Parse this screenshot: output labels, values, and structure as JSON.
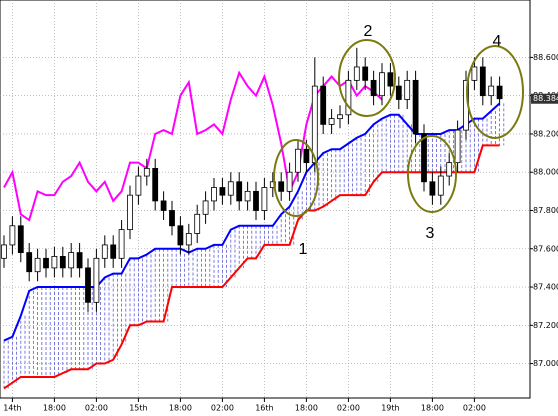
{
  "chart_data": {
    "type": "candlestick",
    "categories": [
      null,
      "14th",
      null,
      null,
      null,
      null,
      "18:00",
      null,
      null,
      null,
      null,
      "02:00",
      null,
      null,
      null,
      null,
      "15th",
      null,
      null,
      null,
      null,
      "18:00",
      null,
      null,
      null,
      null,
      "02:00",
      null,
      null,
      null,
      null,
      "16th",
      null,
      null,
      null,
      null,
      "18:00",
      null,
      null,
      null,
      null,
      "02:00",
      null,
      null,
      null,
      null,
      "19th",
      null,
      null,
      null,
      null,
      "18:00",
      null,
      null,
      null,
      null,
      "02:00",
      null,
      null,
      null
    ],
    "open": [
      87.55,
      87.62,
      87.72,
      87.58,
      87.48,
      87.55,
      87.5,
      87.56,
      87.5,
      87.58,
      87.5,
      87.32,
      87.55,
      87.62,
      87.55,
      87.7,
      87.88,
      87.98,
      88.02,
      87.85,
      87.8,
      87.72,
      87.62,
      87.68,
      87.78,
      87.85,
      87.92,
      87.88,
      87.95,
      87.85,
      87.9,
      87.8,
      87.92,
      87.95,
      87.9,
      88.0,
      88.12,
      88.05,
      88.45,
      88.25,
      88.28,
      88.3,
      88.48,
      88.55,
      88.48,
      88.4,
      88.52,
      88.45,
      88.38,
      88.48,
      88.2,
      87.95,
      87.88,
      87.98,
      88.05,
      88.22,
      88.48,
      88.55,
      88.4,
      88.45
    ],
    "high": [
      87.67,
      87.77,
      87.77,
      87.63,
      87.6,
      87.6,
      87.61,
      87.61,
      87.63,
      87.63,
      87.55,
      87.6,
      87.67,
      87.67,
      87.75,
      87.93,
      88.03,
      88.07,
      88.07,
      87.9,
      87.85,
      87.77,
      87.73,
      87.83,
      87.9,
      87.97,
      87.97,
      88.0,
      88.0,
      87.95,
      87.95,
      87.97,
      88.0,
      88.0,
      88.05,
      88.17,
      88.17,
      88.6,
      88.5,
      88.33,
      88.35,
      88.53,
      88.65,
      88.6,
      88.53,
      88.57,
      88.57,
      88.5,
      88.53,
      88.53,
      88.25,
      88.0,
      88.03,
      88.1,
      88.27,
      88.53,
      88.6,
      88.6,
      88.5,
      88.5
    ],
    "low": [
      87.5,
      87.57,
      87.53,
      87.43,
      87.43,
      87.45,
      87.45,
      87.45,
      87.45,
      87.45,
      87.27,
      87.27,
      87.5,
      87.5,
      87.5,
      87.65,
      87.83,
      87.93,
      87.8,
      87.75,
      87.67,
      87.57,
      87.57,
      87.63,
      87.73,
      87.8,
      87.83,
      87.83,
      87.8,
      87.8,
      87.75,
      87.75,
      87.87,
      87.85,
      87.85,
      87.95,
      88.0,
      88.0,
      88.2,
      88.2,
      88.23,
      88.25,
      88.43,
      88.43,
      88.35,
      88.35,
      88.4,
      88.33,
      88.33,
      88.15,
      87.9,
      87.83,
      87.83,
      87.93,
      88.0,
      88.17,
      88.43,
      88.35,
      88.35,
      88.35
    ],
    "close": [
      87.62,
      87.72,
      87.58,
      87.48,
      87.55,
      87.5,
      87.56,
      87.5,
      87.58,
      87.5,
      87.32,
      87.55,
      87.62,
      87.55,
      87.7,
      87.88,
      87.98,
      88.02,
      87.85,
      87.8,
      87.72,
      87.62,
      87.68,
      87.78,
      87.85,
      87.92,
      87.88,
      87.95,
      87.85,
      87.9,
      87.8,
      87.92,
      87.95,
      87.9,
      88.0,
      88.12,
      88.05,
      88.45,
      88.25,
      88.28,
      88.3,
      88.48,
      88.55,
      88.48,
      88.4,
      88.52,
      88.45,
      88.38,
      88.48,
      88.2,
      87.95,
      87.88,
      87.98,
      88.05,
      88.22,
      88.48,
      88.55,
      88.4,
      88.45,
      88.384
    ],
    "series": [
      {
        "color": "#0000ff",
        "values": [
          87.12,
          87.14,
          87.25,
          87.38,
          87.4,
          87.4,
          87.4,
          87.4,
          87.4,
          87.4,
          87.4,
          87.4,
          87.45,
          87.47,
          87.47,
          87.55,
          87.55,
          87.57,
          87.6,
          87.6,
          87.6,
          87.6,
          87.58,
          87.6,
          87.6,
          87.62,
          87.62,
          87.7,
          87.72,
          87.72,
          87.72,
          87.72,
          87.72,
          87.78,
          87.82,
          87.9,
          88.0,
          88.05,
          88.1,
          88.12,
          88.12,
          88.15,
          88.18,
          88.2,
          88.25,
          88.28,
          88.3,
          88.3,
          88.25,
          88.2,
          88.2,
          88.2,
          88.2,
          88.22,
          88.22,
          88.25,
          88.28,
          88.28,
          88.32,
          88.36
        ]
      },
      {
        "color": "#ff0000",
        "values": [
          86.87,
          86.9,
          86.93,
          86.93,
          86.93,
          86.93,
          86.93,
          86.95,
          86.97,
          86.97,
          86.97,
          87.0,
          87.0,
          87.02,
          87.1,
          87.2,
          87.2,
          87.22,
          87.22,
          87.22,
          87.4,
          87.4,
          87.4,
          87.4,
          87.4,
          87.4,
          87.4,
          87.45,
          87.5,
          87.55,
          87.55,
          87.62,
          87.62,
          87.62,
          87.62,
          87.75,
          87.8,
          87.8,
          87.82,
          87.85,
          87.88,
          87.88,
          87.88,
          87.88,
          87.95,
          88.0,
          88.0,
          88.0,
          88.0,
          88.0,
          88.0,
          88.0,
          88.0,
          88.0,
          88.0,
          88.0,
          88.0,
          88.14,
          88.14,
          88.14
        ]
      },
      {
        "color": "#ff00ff",
        "values": [
          87.92,
          88.0,
          87.78,
          87.75,
          87.9,
          87.88,
          87.88,
          87.95,
          87.98,
          88.05,
          87.95,
          87.9,
          87.95,
          87.85,
          87.9,
          88.05,
          88.05,
          88.02,
          88.2,
          88.22,
          88.2,
          88.4,
          88.47,
          88.2,
          88.22,
          88.25,
          88.2,
          88.38,
          88.52,
          88.45,
          88.4,
          88.5,
          88.35,
          88.15,
          87.9,
          88.0,
          88.25,
          88.4,
          88.45,
          88.5,
          88.45,
          88.48,
          88.4,
          88.45,
          88.42,
          88.38,
          null,
          null,
          null,
          null,
          null,
          null,
          null,
          null,
          null,
          null,
          null,
          null,
          null,
          null
        ]
      }
    ],
    "cloud_color": "#5a5ad8",
    "ylim": [
      86.82,
      88.9
    ],
    "yticks": [
      {
        "value": 87.0,
        "label": "87.000"
      },
      {
        "value": 87.2,
        "label": "87.200"
      },
      {
        "value": 87.4,
        "label": "87.400"
      },
      {
        "value": 87.6,
        "label": "87.600"
      },
      {
        "value": 87.8,
        "label": "87.800"
      },
      {
        "value": 88.0,
        "label": "88.000"
      },
      {
        "value": 88.2,
        "label": "88.200"
      },
      {
        "value": 88.4,
        "label": "88.400"
      },
      {
        "value": 88.6,
        "label": "88.600"
      }
    ],
    "last_price": 88.384,
    "grid": true,
    "annotations": [
      "1",
      "2",
      "3",
      "4"
    ]
  }
}
